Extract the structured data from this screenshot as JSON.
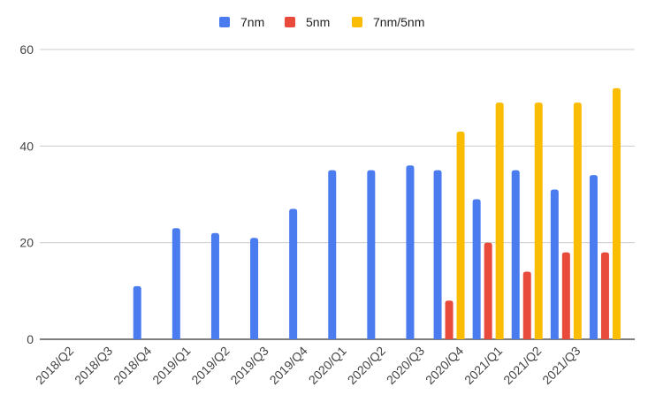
{
  "chart_data": {
    "type": "bar",
    "title": "",
    "xlabel": "",
    "ylabel": "",
    "categories": [
      "2018/Q2",
      "2018/Q3",
      "2018/Q4",
      "2019/Q1",
      "2019/Q2",
      "2019/Q3",
      "2019/Q4",
      "2020/Q1",
      "2020/Q2",
      "2020/Q3",
      "2020/Q4",
      "2021/Q1",
      "2021/Q2",
      "2021/Q3",
      ""
    ],
    "x_tick_labels": [
      "2018/Q2",
      "2018/Q3",
      "2018/Q4",
      "2019/Q1",
      "2019/Q2",
      "2019/Q3",
      "2019/Q4",
      "2020/Q1",
      "2020/Q2",
      "2020/Q3",
      "2020/Q4",
      "2021/Q1",
      "2021/Q2",
      "2021/Q3"
    ],
    "series": [
      {
        "name": "7nm",
        "color": "#4a7cf0",
        "values": [
          0,
          0,
          11,
          23,
          22,
          21,
          27,
          35,
          35,
          36,
          35,
          29,
          35,
          31,
          34
        ]
      },
      {
        "name": "5nm",
        "color": "#e84b3c",
        "values": [
          0,
          0,
          0,
          0,
          0,
          0,
          0,
          0,
          0,
          0,
          8,
          20,
          14,
          18,
          18
        ]
      },
      {
        "name": "7nm/5nm",
        "color": "#fbbc04",
        "values": [
          0,
          0,
          0,
          0,
          0,
          0,
          0,
          0,
          0,
          0,
          43,
          49,
          49,
          49,
          52
        ]
      }
    ],
    "ylim": [
      0,
      60
    ],
    "y_ticks": [
      0,
      20,
      40,
      60
    ],
    "grid": true,
    "legend_position": "top-center"
  }
}
